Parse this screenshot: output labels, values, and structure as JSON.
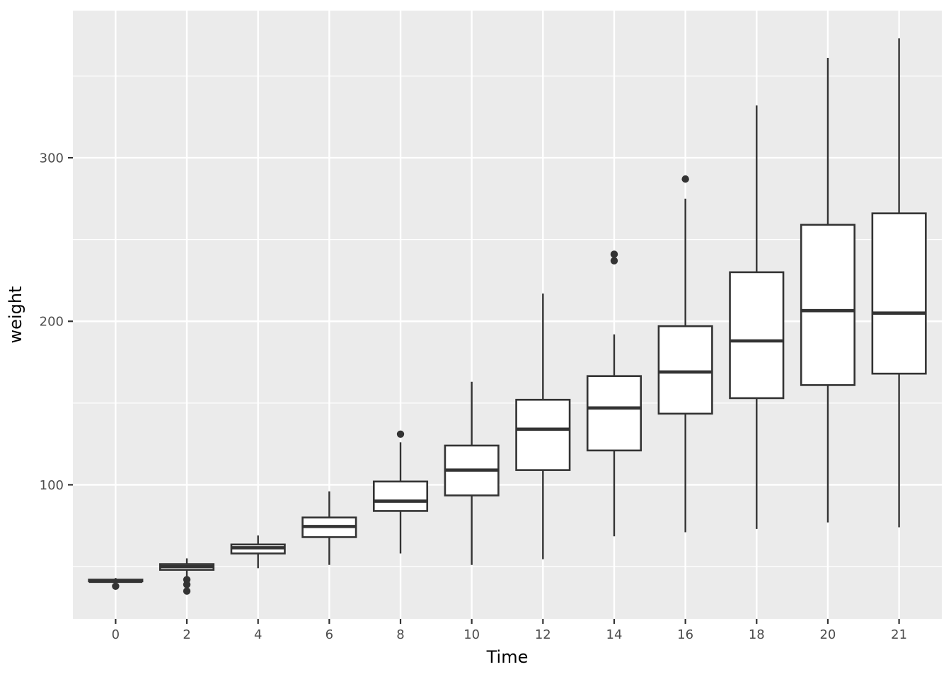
{
  "chart_data": {
    "type": "boxplot",
    "title": "",
    "xlabel": "Time",
    "ylabel": "weight",
    "x_categories": [
      "0",
      "2",
      "4",
      "6",
      "8",
      "10",
      "12",
      "14",
      "16",
      "18",
      "20",
      "21"
    ],
    "y_ticks": [
      100,
      200,
      300
    ],
    "y_minor_gridlines": [
      50,
      150,
      250,
      350
    ],
    "ylim": [
      18,
      390
    ],
    "grid": true,
    "legend": "none",
    "boxes": [
      {
        "time": "0",
        "min": 40,
        "q1": 41,
        "median": 41,
        "q3": 42,
        "max": 43,
        "outliers": [
          38
        ]
      },
      {
        "time": "2",
        "min": 44,
        "q1": 48,
        "median": 50,
        "q3": 51.5,
        "max": 55,
        "outliers": [
          42,
          39,
          35
        ]
      },
      {
        "time": "4",
        "min": 49,
        "q1": 58,
        "median": 61.5,
        "q3": 63.5,
        "max": 69,
        "outliers": []
      },
      {
        "time": "6",
        "min": 51,
        "q1": 68,
        "median": 74.5,
        "q3": 80,
        "max": 96,
        "outliers": []
      },
      {
        "time": "8",
        "min": 58,
        "q1": 84,
        "median": 90,
        "q3": 102,
        "max": 126,
        "outliers": [
          131
        ]
      },
      {
        "time": "10",
        "min": 51,
        "q1": 93.5,
        "median": 109,
        "q3": 124,
        "max": 163,
        "outliers": []
      },
      {
        "time": "12",
        "min": 54.5,
        "q1": 109,
        "median": 134,
        "q3": 152,
        "max": 217,
        "outliers": []
      },
      {
        "time": "14",
        "min": 68.5,
        "q1": 121,
        "median": 147,
        "q3": 166.5,
        "max": 192,
        "outliers": [
          237,
          241
        ]
      },
      {
        "time": "16",
        "min": 71,
        "q1": 143.5,
        "median": 169,
        "q3": 197,
        "max": 275,
        "outliers": [
          287
        ]
      },
      {
        "time": "18",
        "min": 73,
        "q1": 153,
        "median": 188,
        "q3": 230,
        "max": 332,
        "outliers": []
      },
      {
        "time": "20",
        "min": 77,
        "q1": 161,
        "median": 206.5,
        "q3": 259,
        "max": 361,
        "outliers": []
      },
      {
        "time": "21",
        "min": 74,
        "q1": 168,
        "median": 205,
        "q3": 266,
        "max": 373,
        "outliers": []
      }
    ]
  },
  "colors": {
    "panel_background": "#EBEBEB",
    "gridline": "#FFFFFF",
    "box_fill": "#FFFFFF",
    "box_stroke": "#333333",
    "outlier": "#333333",
    "tick_mark": "#333333",
    "tick_label": "#4D4D4D",
    "axis_title": "#000000",
    "page_background": "#FFFFFF"
  }
}
